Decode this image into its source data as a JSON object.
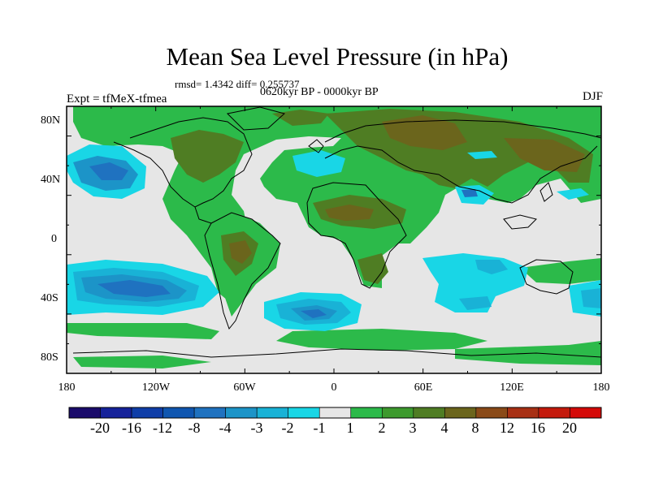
{
  "title": "Mean Sea Level Pressure (in hPa)",
  "stats_line": "rmsd= 1.4342 diff= 0.255737",
  "period_line": "0620kyr BP - 0000kyr BP",
  "experiment_label": "Expt = tfMeX-tfmea",
  "season_label": "DJF",
  "lat_labels": [
    "80N",
    "40N",
    "0",
    "40S",
    "80S"
  ],
  "lon_labels": [
    "180",
    "120W",
    "60W",
    "0",
    "60E",
    "120E",
    "180"
  ],
  "legend": {
    "levels": [
      "-20",
      "-16",
      "-12",
      "-8",
      "-4",
      "-3",
      "-2",
      "-1",
      "1",
      "2",
      "3",
      "4",
      "8",
      "12",
      "16",
      "20"
    ],
    "colors": [
      "#1a0b6b",
      "#15229a",
      "#0f3ea8",
      "#0f56b0",
      "#1f72c0",
      "#1c94c8",
      "#19b2d6",
      "#19d6e6",
      "#e6e6e6",
      "#2cba4a",
      "#3d9a2e",
      "#4f7d23",
      "#6b651c",
      "#8a4a18",
      "#a83014",
      "#c41a0c",
      "#d40a08"
    ]
  },
  "colors": {
    "neutral": "#e6e6e6",
    "green": "#2cba4a",
    "dark_green": "#4f7d23",
    "brown": "#6b651c",
    "cyan": "#19d6e6",
    "light_blue": "#19b2d6",
    "mid_blue": "#1c94c8",
    "deep_blue": "#1f72c0"
  }
}
